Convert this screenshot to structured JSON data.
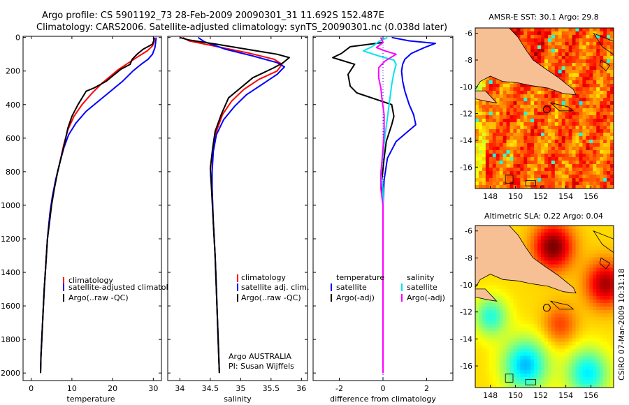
{
  "header": {
    "title_line1": "Argo profile: CS 5901192_73 28-Feb-2009 20090301_31 11.692S 152.487E",
    "title_line2": "Climatology: CARS2006. Satellite-adjusted climatology: synTS_20090301.nc (0.038d later)"
  },
  "colors": {
    "climatology": "#ff0000",
    "satellite": "#0000ff",
    "argo": "#000000",
    "temp_diff_satellite": "#0000ff",
    "sal_diff_satellite": "#00e5ee",
    "sal_diff_argo": "#ff00ff"
  },
  "chart_data": [
    {
      "type": "line",
      "name": "temperature-panel",
      "xlabel": "temperature",
      "ylabel": "",
      "xlim": [
        -2,
        32
      ],
      "ylim": [
        2050,
        0
      ],
      "xticks": [
        0,
        10,
        20,
        30
      ],
      "yticks": [
        0,
        200,
        400,
        600,
        800,
        1000,
        1200,
        1400,
        1600,
        1800,
        2000
      ],
      "legend": {
        "position": "lower-middle",
        "labels": [
          "climatology",
          "satellite-adjusted climatology",
          "Argo(..raw -QC)"
        ]
      },
      "series": [
        {
          "name": "climatology",
          "color": "#ff0000",
          "points": [
            [
              30.3,
              0
            ],
            [
              30.2,
              25
            ],
            [
              29.8,
              50
            ],
            [
              28.5,
              80
            ],
            [
              26.5,
              110
            ],
            [
              24,
              150
            ],
            [
              21.5,
              190
            ],
            [
              19.5,
              230
            ],
            [
              17.5,
              270
            ],
            [
              15,
              330
            ],
            [
              12.5,
              400
            ],
            [
              10.5,
              470
            ],
            [
              9,
              550
            ],
            [
              8,
              640
            ],
            [
              7,
              750
            ],
            [
              6,
              850
            ],
            [
              5.2,
              950
            ],
            [
              4.6,
              1050
            ],
            [
              4,
              1200
            ],
            [
              3.6,
              1350
            ],
            [
              3.2,
              1500
            ],
            [
              2.9,
              1650
            ],
            [
              2.6,
              1800
            ],
            [
              2.4,
              1900
            ],
            [
              2.3,
              2000
            ]
          ]
        },
        {
          "name": "satellite-adjusted climatology",
          "color": "#0000ff",
          "points": [
            [
              30.7,
              0
            ],
            [
              30.6,
              25
            ],
            [
              30.4,
              60
            ],
            [
              29.8,
              100
            ],
            [
              28.7,
              130
            ],
            [
              27,
              160
            ],
            [
              25,
              200
            ],
            [
              22.5,
              260
            ],
            [
              19.5,
              320
            ],
            [
              16.5,
              380
            ],
            [
              13.5,
              440
            ],
            [
              11,
              510
            ],
            [
              9.2,
              580
            ],
            [
              8,
              660
            ],
            [
              7,
              750
            ],
            [
              6,
              850
            ],
            [
              5.2,
              950
            ],
            [
              4.6,
              1050
            ],
            [
              4,
              1200
            ],
            [
              3.6,
              1350
            ],
            [
              3.2,
              1500
            ],
            [
              2.9,
              1650
            ],
            [
              2.6,
              1800
            ],
            [
              2.4,
              1900
            ],
            [
              2.3,
              2000
            ]
          ]
        },
        {
          "name": "Argo(..raw -QC)",
          "color": "#000000",
          "points": [
            [
              30.2,
              0
            ],
            [
              30.1,
              20
            ],
            [
              29.8,
              40
            ],
            [
              27.5,
              70
            ],
            [
              26,
              100
            ],
            [
              24.8,
              130
            ],
            [
              24.3,
              160
            ],
            [
              22,
              190
            ],
            [
              20,
              230
            ],
            [
              18.5,
              260
            ],
            [
              15.5,
              300
            ],
            [
              13.5,
              320
            ],
            [
              11.5,
              400
            ],
            [
              10,
              470
            ],
            [
              9,
              540
            ],
            [
              8.3,
              620
            ],
            [
              7.5,
              700
            ],
            [
              6.5,
              800
            ],
            [
              5.7,
              900
            ],
            [
              5,
              1000
            ],
            [
              4.5,
              1100
            ],
            [
              4,
              1200
            ],
            [
              3.6,
              1350
            ],
            [
              3.2,
              1500
            ],
            [
              2.9,
              1650
            ],
            [
              2.6,
              1800
            ],
            [
              2.4,
              1900
            ],
            [
              2.3,
              2000
            ]
          ]
        }
      ]
    },
    {
      "type": "line",
      "name": "salinity-panel",
      "xlabel": "salinity",
      "xlim": [
        33.8,
        36.1
      ],
      "ylim": [
        2050,
        0
      ],
      "xticks": [
        34,
        34.5,
        35,
        35.5,
        36
      ],
      "legend": {
        "position": "lower-middle",
        "labels": [
          "climatology",
          "satellite adj. clim.",
          "Argo(..raw -QC)"
        ]
      },
      "annotation": [
        "Argo AUSTRALIA",
        "PI: Susan Wijffels"
      ],
      "series": [
        {
          "name": "climatology",
          "color": "#ff0000",
          "points": [
            [
              34.05,
              0
            ],
            [
              34.15,
              20
            ],
            [
              34.55,
              50
            ],
            [
              35.1,
              90
            ],
            [
              35.55,
              130
            ],
            [
              35.68,
              160
            ],
            [
              35.6,
              200
            ],
            [
              35.3,
              250
            ],
            [
              35.05,
              310
            ],
            [
              34.85,
              380
            ],
            [
              34.7,
              460
            ],
            [
              34.6,
              560
            ],
            [
              34.55,
              660
            ],
            [
              34.53,
              780
            ],
            [
              34.53,
              900
            ],
            [
              34.55,
              1100
            ],
            [
              34.58,
              1300
            ],
            [
              34.6,
              1500
            ],
            [
              34.62,
              1700
            ],
            [
              34.64,
              1900
            ],
            [
              34.65,
              2000
            ]
          ]
        },
        {
          "name": "satellite adj. clim.",
          "color": "#0000ff",
          "points": [
            [
              34.3,
              0
            ],
            [
              34.4,
              25
            ],
            [
              34.75,
              70
            ],
            [
              35.2,
              110
            ],
            [
              35.6,
              150
            ],
            [
              35.72,
              175
            ],
            [
              35.6,
              220
            ],
            [
              35.35,
              280
            ],
            [
              35.1,
              340
            ],
            [
              34.9,
              410
            ],
            [
              34.72,
              490
            ],
            [
              34.6,
              580
            ],
            [
              34.55,
              680
            ],
            [
              34.53,
              800
            ],
            [
              34.53,
              900
            ],
            [
              34.55,
              1100
            ],
            [
              34.58,
              1300
            ],
            [
              34.6,
              1500
            ],
            [
              34.62,
              1700
            ],
            [
              34.64,
              1900
            ],
            [
              34.65,
              2000
            ]
          ]
        },
        {
          "name": "Argo(..raw -QC)",
          "color": "#000000",
          "points": [
            [
              34.0,
              0
            ],
            [
              34.15,
              15
            ],
            [
              34.6,
              40
            ],
            [
              35.1,
              70
            ],
            [
              35.6,
              100
            ],
            [
              35.8,
              120
            ],
            [
              35.7,
              150
            ],
            [
              35.55,
              180
            ],
            [
              35.2,
              240
            ],
            [
              35.0,
              300
            ],
            [
              34.8,
              360
            ],
            [
              34.68,
              460
            ],
            [
              34.58,
              560
            ],
            [
              34.54,
              660
            ],
            [
              34.5,
              780
            ],
            [
              34.52,
              900
            ],
            [
              34.55,
              1100
            ],
            [
              34.58,
              1300
            ],
            [
              34.6,
              1500
            ],
            [
              34.62,
              1700
            ],
            [
              34.64,
              1900
            ],
            [
              34.65,
              2000
            ]
          ]
        }
      ]
    },
    {
      "type": "line",
      "name": "difference-panel",
      "xlabel": "difference from climatology",
      "xlim": [
        -3.2,
        3.2
      ],
      "ylim": [
        2050,
        0
      ],
      "xticks": [
        -2,
        0,
        2
      ],
      "legend": {
        "position": "lower-middle",
        "labels": [
          "temperature",
          "satellite",
          "Argo(-adj)",
          "salinity",
          "satellite",
          "Argo(-adj)"
        ]
      },
      "series": [
        {
          "name": "temperature satellite",
          "color": "#0000ff",
          "points": [
            [
              0.4,
              0
            ],
            [
              1.2,
              20
            ],
            [
              2.4,
              35
            ],
            [
              1.9,
              60
            ],
            [
              1.3,
              95
            ],
            [
              1.0,
              130
            ],
            [
              0.9,
              160
            ],
            [
              0.85,
              200
            ],
            [
              0.9,
              260
            ],
            [
              1.0,
              320
            ],
            [
              1.2,
              400
            ],
            [
              1.4,
              460
            ],
            [
              1.5,
              520
            ],
            [
              0.6,
              620
            ],
            [
              0.2,
              720
            ],
            [
              0.05,
              850
            ],
            [
              0,
              1000
            ],
            [
              0,
              1500
            ],
            [
              0,
              2000
            ]
          ]
        },
        {
          "name": "temperature Argo(-adj)",
          "color": "#000000",
          "points": [
            [
              -0.1,
              0
            ],
            [
              0.0,
              30
            ],
            [
              -1.5,
              55
            ],
            [
              -1.9,
              95
            ],
            [
              -2.3,
              120
            ],
            [
              -1.3,
              160
            ],
            [
              -1.6,
              220
            ],
            [
              -1.5,
              290
            ],
            [
              -1.2,
              330
            ],
            [
              0.4,
              400
            ],
            [
              0.5,
              470
            ],
            [
              0.4,
              520
            ],
            [
              0.15,
              620
            ],
            [
              0.05,
              720
            ],
            [
              -0.05,
              850
            ],
            [
              0,
              1000
            ],
            [
              0,
              1500
            ],
            [
              0,
              2000
            ]
          ]
        },
        {
          "name": "salinity satellite",
          "color": "#00e5ee",
          "points": [
            [
              0.2,
              0
            ],
            [
              -0.2,
              25
            ],
            [
              -0.5,
              55
            ],
            [
              -0.9,
              80
            ],
            [
              -0.2,
              110
            ],
            [
              0.5,
              135
            ],
            [
              0.6,
              160
            ],
            [
              0.5,
              210
            ],
            [
              0.4,
              280
            ],
            [
              0.3,
              380
            ],
            [
              0.2,
              480
            ],
            [
              0.1,
              580
            ],
            [
              0,
              700
            ],
            [
              -0.1,
              800
            ],
            [
              0,
              900
            ],
            [
              0,
              1000
            ],
            [
              0,
              1500
            ],
            [
              0,
              2000
            ]
          ]
        },
        {
          "name": "salinity Argo(-adj)",
          "color": "#ff00ff",
          "points": [
            [
              -0.1,
              0
            ],
            [
              0.0,
              30
            ],
            [
              -0.3,
              60
            ],
            [
              0.1,
              80
            ],
            [
              0.6,
              100
            ],
            [
              0.1,
              140
            ],
            [
              -0.2,
              180
            ],
            [
              -0.2,
              240
            ],
            [
              -0.1,
              300
            ],
            [
              -0.05,
              360
            ],
            [
              0.05,
              460
            ],
            [
              0.05,
              560
            ],
            [
              0,
              660
            ],
            [
              -0.1,
              820
            ],
            [
              -0.1,
              900
            ],
            [
              0,
              1000
            ],
            [
              0,
              1500
            ],
            [
              0,
              2000
            ]
          ]
        }
      ]
    },
    {
      "type": "heatmap",
      "name": "sst-map",
      "title": "AMSR-E SST: 30.1 Argo: 29.8",
      "xlim": [
        146.8,
        157.8
      ],
      "ylim": [
        -17.6,
        -5.6
      ],
      "xticks": [
        148,
        150,
        152,
        154,
        156
      ],
      "yticks": [
        -6,
        -8,
        -10,
        -12,
        -14,
        -16
      ],
      "marker": {
        "lon": 152.487,
        "lat": -11.692
      }
    },
    {
      "type": "heatmap",
      "name": "sla-map",
      "title": "Altimetric SLA: 0.22 Argo: 0.04",
      "xlim": [
        146.8,
        157.8
      ],
      "ylim": [
        -17.6,
        -5.6
      ],
      "xticks": [
        148,
        150,
        152,
        154,
        156
      ],
      "yticks": [
        -6,
        -8,
        -10,
        -12,
        -14,
        -16
      ],
      "marker": {
        "lon": 152.487,
        "lat": -11.692
      }
    }
  ],
  "footer": {
    "timestamp": "CSIRO 07-Mar-2009 10:31:18"
  }
}
